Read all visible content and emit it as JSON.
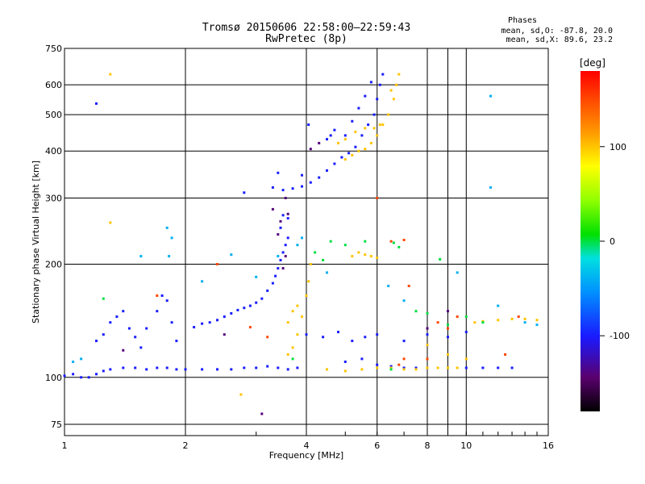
{
  "header": {
    "title_line1": "Tromsø 20150606 22:58:00–22:59:43",
    "title_line2": "RwPretec (8p)"
  },
  "phases": {
    "title": "Phases",
    "o_stats": "mean, sd,O: -87.8, 20.0",
    "x_stats": "mean, sd,X:  89.6, 23.2"
  },
  "colorbar": {
    "label": "[deg]",
    "ticks": [
      100,
      0,
      -100
    ],
    "range": [
      -180,
      180
    ]
  },
  "chart_data": {
    "type": "scatter",
    "xlabel": "Frequency [MHz]",
    "ylabel": "Stationary phase Virtual Height [km]",
    "x_scale": "log",
    "y_scale": "log",
    "xlim": [
      1,
      16
    ],
    "ylim": [
      70,
      750
    ],
    "x_ticks": [
      1,
      2,
      4,
      6,
      8,
      10,
      16
    ],
    "x_tick_labels": [
      "1",
      "2",
      "4",
      "6",
      "8",
      "10",
      "16"
    ],
    "x_minor": [
      9
    ],
    "y_ticks": [
      75,
      100,
      200,
      300,
      400,
      500,
      600,
      750
    ],
    "y_tick_labels": [
      "75",
      "100",
      "200",
      "300",
      "400",
      "500",
      "600",
      "750"
    ],
    "grid": true,
    "series": [
      {
        "phase": -100,
        "points": [
          [
            1.0,
            101
          ],
          [
            1.05,
            102
          ],
          [
            1.1,
            100
          ],
          [
            1.15,
            100
          ],
          [
            1.2,
            102
          ],
          [
            1.25,
            104
          ],
          [
            1.3,
            105
          ],
          [
            1.4,
            106
          ],
          [
            1.5,
            106
          ],
          [
            1.6,
            105
          ],
          [
            1.7,
            106
          ],
          [
            1.8,
            106
          ],
          [
            1.9,
            105
          ],
          [
            2.0,
            105
          ],
          [
            2.2,
            105
          ],
          [
            2.4,
            105
          ],
          [
            2.6,
            105
          ],
          [
            2.8,
            106
          ],
          [
            3.0,
            106
          ],
          [
            3.2,
            107
          ],
          [
            3.4,
            106
          ],
          [
            3.6,
            105
          ],
          [
            3.8,
            106
          ],
          [
            1.2,
            125
          ],
          [
            1.25,
            130
          ],
          [
            1.3,
            140
          ],
          [
            1.35,
            145
          ],
          [
            1.4,
            150
          ],
          [
            1.45,
            135
          ],
          [
            1.5,
            128
          ],
          [
            1.55,
            120
          ],
          [
            1.6,
            135
          ],
          [
            1.7,
            150
          ],
          [
            1.75,
            165
          ],
          [
            1.8,
            160
          ],
          [
            1.85,
            140
          ],
          [
            1.9,
            125
          ],
          [
            2.1,
            136
          ],
          [
            2.2,
            139
          ],
          [
            2.3,
            140
          ],
          [
            2.4,
            142
          ],
          [
            2.5,
            145
          ],
          [
            2.6,
            148
          ],
          [
            2.7,
            151
          ],
          [
            2.8,
            153
          ],
          [
            2.9,
            155
          ],
          [
            3.0,
            158
          ],
          [
            3.1,
            162
          ],
          [
            3.2,
            170
          ],
          [
            3.3,
            178
          ],
          [
            3.35,
            186
          ],
          [
            3.4,
            195
          ],
          [
            3.45,
            205
          ],
          [
            3.5,
            215
          ],
          [
            3.55,
            225
          ],
          [
            3.6,
            235
          ],
          [
            3.45,
            250
          ],
          [
            3.5,
            270
          ],
          [
            3.6,
            265
          ],
          [
            3.3,
            320
          ],
          [
            3.5,
            315
          ],
          [
            3.7,
            318
          ],
          [
            3.9,
            322
          ],
          [
            4.1,
            330
          ],
          [
            4.3,
            340
          ],
          [
            4.5,
            355
          ],
          [
            4.7,
            370
          ],
          [
            4.9,
            385
          ],
          [
            5.1,
            395
          ],
          [
            5.3,
            410
          ],
          [
            5.5,
            440
          ],
          [
            5.7,
            470
          ],
          [
            5.9,
            500
          ],
          [
            6.0,
            550
          ],
          [
            6.1,
            600
          ],
          [
            6.2,
            640
          ],
          [
            5.8,
            610
          ],
          [
            5.6,
            560
          ],
          [
            5.4,
            520
          ],
          [
            5.2,
            480
          ],
          [
            5.0,
            440
          ],
          [
            4.6,
            440
          ],
          [
            4.7,
            455
          ],
          [
            4.5,
            430
          ],
          [
            1.2,
            535
          ],
          [
            2.8,
            310
          ],
          [
            3.4,
            350
          ],
          [
            3.9,
            345
          ],
          [
            4.05,
            470
          ],
          [
            5.0,
            110
          ],
          [
            5.5,
            112
          ],
          [
            6.0,
            108
          ],
          [
            6.5,
            107
          ],
          [
            7.0,
            106
          ],
          [
            7.5,
            106
          ],
          [
            8.0,
            106
          ],
          [
            9.0,
            106
          ],
          [
            10.0,
            106
          ],
          [
            11.0,
            106
          ],
          [
            12.0,
            106
          ],
          [
            13.0,
            106
          ],
          [
            4.0,
            130
          ],
          [
            4.4,
            128
          ],
          [
            4.8,
            132
          ],
          [
            5.2,
            125
          ],
          [
            5.6,
            128
          ],
          [
            6.0,
            130
          ],
          [
            7.0,
            125
          ],
          [
            8.0,
            130
          ],
          [
            9.0,
            128
          ],
          [
            10.0,
            132
          ]
        ]
      },
      {
        "phase": 100,
        "points": [
          [
            3.6,
            115
          ],
          [
            3.7,
            120
          ],
          [
            3.8,
            130
          ],
          [
            3.9,
            145
          ],
          [
            4.0,
            165
          ],
          [
            4.05,
            180
          ],
          [
            4.1,
            200
          ],
          [
            3.8,
            155
          ],
          [
            3.7,
            150
          ],
          [
            3.6,
            140
          ],
          [
            4.5,
            105
          ],
          [
            5.0,
            104
          ],
          [
            5.5,
            105
          ],
          [
            6.0,
            106
          ],
          [
            6.5,
            106
          ],
          [
            7.0,
            105
          ],
          [
            7.5,
            105
          ],
          [
            8.0,
            106
          ],
          [
            8.5,
            106
          ],
          [
            9.0,
            106
          ],
          [
            9.5,
            106
          ],
          [
            5.0,
            380
          ],
          [
            5.2,
            390
          ],
          [
            5.4,
            400
          ],
          [
            5.6,
            405
          ],
          [
            5.8,
            420
          ],
          [
            6.0,
            440
          ],
          [
            6.2,
            470
          ],
          [
            6.4,
            500
          ],
          [
            6.6,
            550
          ],
          [
            6.7,
            600
          ],
          [
            6.8,
            640
          ],
          [
            6.5,
            580
          ],
          [
            4.8,
            420
          ],
          [
            5.0,
            430
          ],
          [
            5.3,
            450
          ],
          [
            5.6,
            460
          ],
          [
            5.9,
            460
          ],
          [
            6.1,
            470
          ],
          [
            5.2,
            210
          ],
          [
            5.4,
            215
          ],
          [
            5.6,
            212
          ],
          [
            5.8,
            210
          ],
          [
            6.0,
            208
          ],
          [
            10.5,
            140
          ],
          [
            11.0,
            141
          ],
          [
            12.0,
            142
          ],
          [
            13.0,
            143
          ],
          [
            14.0,
            143
          ],
          [
            15.0,
            142
          ],
          [
            1.3,
            640
          ],
          [
            1.3,
            258
          ],
          [
            2.75,
            90
          ],
          [
            8.0,
            122
          ],
          [
            9.0,
            115
          ],
          [
            10.0,
            112
          ]
        ]
      },
      {
        "phase": 0,
        "points": [
          [
            4.2,
            215
          ],
          [
            4.6,
            230
          ],
          [
            4.4,
            205
          ],
          [
            5.0,
            225
          ],
          [
            5.6,
            230
          ],
          [
            6.6,
            228
          ],
          [
            6.8,
            222
          ],
          [
            8.6,
            206
          ],
          [
            7.5,
            150
          ],
          [
            8.0,
            148
          ],
          [
            9.0,
            138
          ],
          [
            10.0,
            145
          ],
          [
            11.0,
            140
          ],
          [
            6.5,
            105
          ],
          [
            3.7,
            112
          ],
          [
            1.25,
            162
          ]
        ]
      },
      {
        "phase": -40,
        "points": [
          [
            1.8,
            250
          ],
          [
            1.85,
            235
          ],
          [
            1.82,
            210
          ],
          [
            2.6,
            212
          ],
          [
            3.0,
            185
          ],
          [
            3.4,
            210
          ],
          [
            3.8,
            225
          ],
          [
            3.9,
            235
          ],
          [
            4.5,
            190
          ],
          [
            6.4,
            175
          ],
          [
            7.0,
            160
          ],
          [
            12.0,
            155
          ],
          [
            14.0,
            140
          ],
          [
            15.0,
            138
          ],
          [
            11.5,
            560
          ],
          [
            11.5,
            320
          ],
          [
            9.5,
            190
          ],
          [
            2.2,
            180
          ],
          [
            1.55,
            210
          ],
          [
            1.05,
            110
          ],
          [
            1.1,
            112
          ]
        ]
      },
      {
        "phase": 150,
        "points": [
          [
            6.8,
            108
          ],
          [
            7.0,
            112
          ],
          [
            8.0,
            112
          ],
          [
            8.5,
            140
          ],
          [
            9.0,
            135
          ],
          [
            9.5,
            145
          ],
          [
            7.2,
            175
          ],
          [
            6.5,
            230
          ],
          [
            7.0,
            232
          ],
          [
            2.9,
            136
          ],
          [
            3.2,
            128
          ],
          [
            1.7,
            165
          ],
          [
            2.4,
            200
          ],
          [
            6.0,
            300
          ],
          [
            12.5,
            115
          ],
          [
            13.5,
            145
          ]
        ]
      },
      {
        "phase": -140,
        "points": [
          [
            3.3,
            280
          ],
          [
            3.45,
            260
          ],
          [
            3.55,
            300
          ],
          [
            3.6,
            272
          ],
          [
            3.4,
            240
          ],
          [
            3.5,
            195
          ],
          [
            3.55,
            210
          ],
          [
            4.1,
            405
          ],
          [
            4.3,
            420
          ],
          [
            9.0,
            150
          ],
          [
            8.0,
            135
          ],
          [
            2.5,
            130
          ],
          [
            1.4,
            118
          ],
          [
            3.1,
            80
          ]
        ]
      }
    ]
  }
}
